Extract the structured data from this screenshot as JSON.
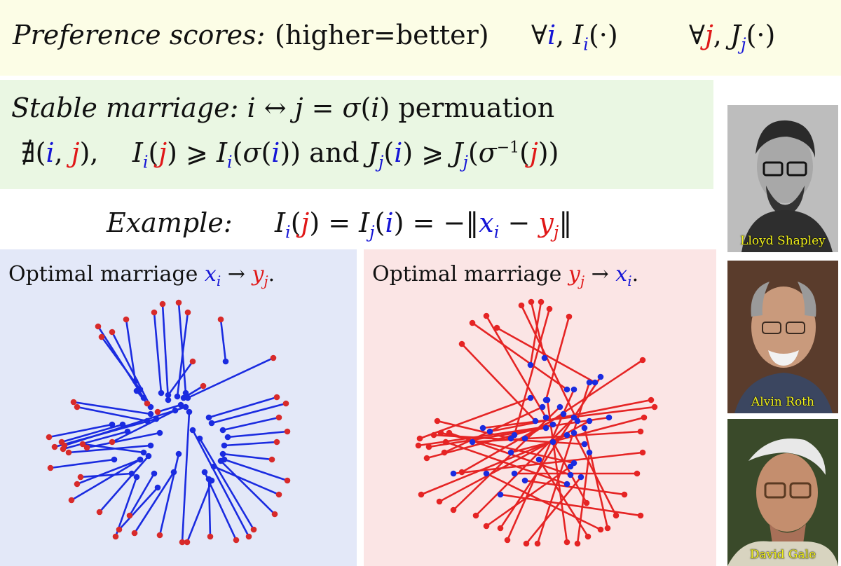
{
  "header": {
    "pref_label": "Preference scores:",
    "pref_note": "(higher=better)"
  },
  "stable": {
    "label": "Stable marriage:",
    "word": "permuation",
    "conj": "and"
  },
  "example": {
    "label": "Example:"
  },
  "panels": {
    "left_title": "Optimal marriage",
    "right_title": "Optimal marriage"
  },
  "portraits": [
    {
      "name": "Lloyd Shapley",
      "icon": "portrait-photo"
    },
    {
      "name": "Alvin Roth",
      "icon": "portrait-photo"
    },
    {
      "name": "David Gale",
      "icon": "portrait-photo"
    }
  ],
  "colors": {
    "blue": "#1515d6",
    "red": "#e01818",
    "pref_bg": "#fcfde6",
    "stable_bg": "#eaf7e3",
    "blue_bg": "#e3e8f8",
    "red_bg": "#fbe5e5"
  }
}
